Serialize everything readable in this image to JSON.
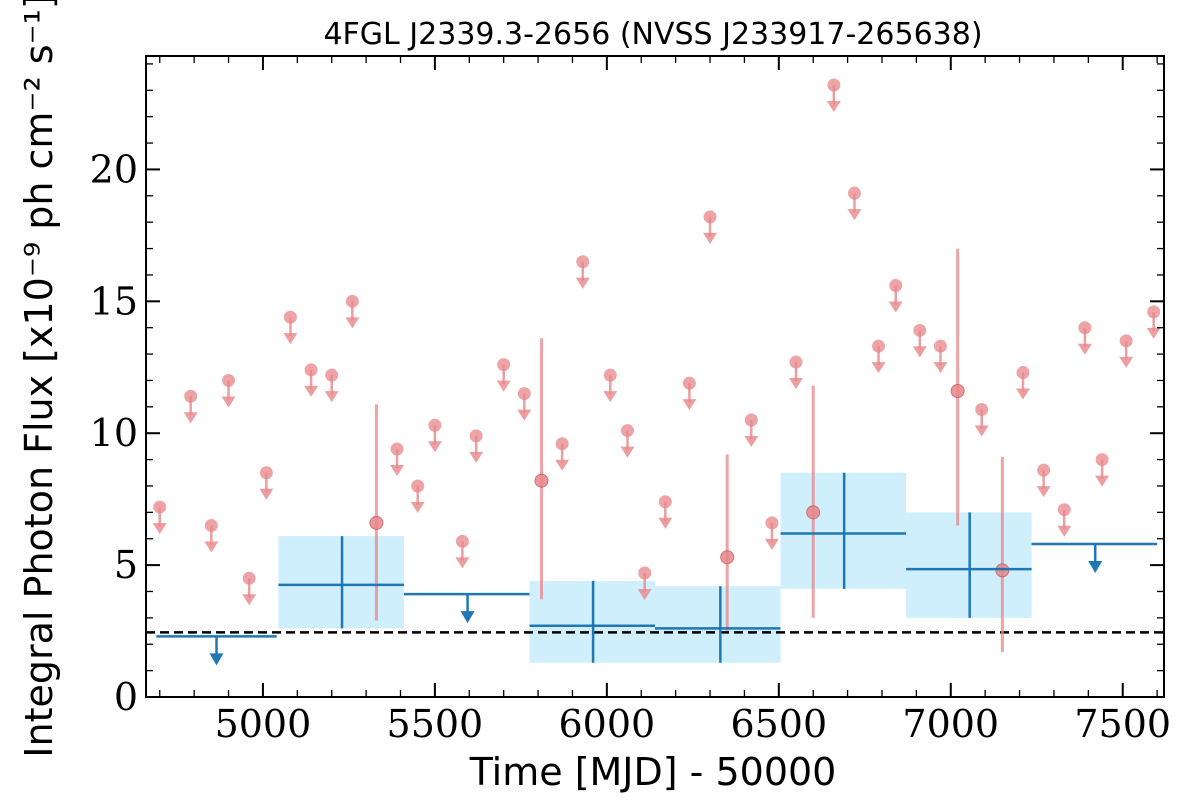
{
  "chart_data": {
    "type": "scatter",
    "title": "4FGL J2339.3-2656 (NVSS J233917-265638)",
    "xlabel": "Time [MJD] - 50000",
    "ylabel": "Integral Photon Flux [x10⁻⁹ ph cm⁻² s⁻¹]",
    "xlim": [
      4660,
      7620
    ],
    "ylim": [
      0,
      24.3
    ],
    "xticks": [
      5000,
      5500,
      6000,
      6500,
      7000,
      7500
    ],
    "yticks": [
      0,
      5,
      10,
      15,
      20
    ],
    "xtick_labels": [
      "5000",
      "5500",
      "6000",
      "6500",
      "7000",
      "7500"
    ],
    "ytick_labels": [
      "0",
      "5",
      "10",
      "15",
      "20"
    ],
    "reference_line": {
      "y": 2.45,
      "style": "dashed",
      "color": "#000000"
    },
    "colors": {
      "fine": "#e8868a",
      "coarse": "#1f77b4",
      "band": "#cdeefc"
    },
    "series": [
      {
        "kind": "fine_bins_upper_limits",
        "color": "#e8868a",
        "points": [
          {
            "x": 4700,
            "y": 7.2
          },
          {
            "x": 4790,
            "y": 11.4
          },
          {
            "x": 4850,
            "y": 6.5
          },
          {
            "x": 4900,
            "y": 12.0
          },
          {
            "x": 4960,
            "y": 4.5
          },
          {
            "x": 5010,
            "y": 8.5
          },
          {
            "x": 5080,
            "y": 14.4
          },
          {
            "x": 5140,
            "y": 12.4
          },
          {
            "x": 5200,
            "y": 12.2
          },
          {
            "x": 5260,
            "y": 15.0
          },
          {
            "x": 5390,
            "y": 9.4
          },
          {
            "x": 5450,
            "y": 8.0
          },
          {
            "x": 5500,
            "y": 10.3
          },
          {
            "x": 5580,
            "y": 5.9
          },
          {
            "x": 5620,
            "y": 9.9
          },
          {
            "x": 5700,
            "y": 12.6
          },
          {
            "x": 5760,
            "y": 11.5
          },
          {
            "x": 5870,
            "y": 9.6
          },
          {
            "x": 5930,
            "y": 16.5
          },
          {
            "x": 6010,
            "y": 12.2
          },
          {
            "x": 6060,
            "y": 10.1
          },
          {
            "x": 6110,
            "y": 4.7
          },
          {
            "x": 6170,
            "y": 7.4
          },
          {
            "x": 6240,
            "y": 11.9
          },
          {
            "x": 6300,
            "y": 18.2
          },
          {
            "x": 6420,
            "y": 10.5
          },
          {
            "x": 6480,
            "y": 6.6
          },
          {
            "x": 6550,
            "y": 12.7
          },
          {
            "x": 6660,
            "y": 23.2
          },
          {
            "x": 6720,
            "y": 19.1
          },
          {
            "x": 6790,
            "y": 13.3
          },
          {
            "x": 6840,
            "y": 15.6
          },
          {
            "x": 6910,
            "y": 13.9
          },
          {
            "x": 6970,
            "y": 13.3
          },
          {
            "x": 7090,
            "y": 10.9
          },
          {
            "x": 7210,
            "y": 12.3
          },
          {
            "x": 7270,
            "y": 8.6
          },
          {
            "x": 7330,
            "y": 7.1
          },
          {
            "x": 7390,
            "y": 14.0
          },
          {
            "x": 7440,
            "y": 9.0
          },
          {
            "x": 7510,
            "y": 13.5
          },
          {
            "x": 7590,
            "y": 14.6
          }
        ]
      },
      {
        "kind": "fine_bins_detections",
        "color": "#e8868a",
        "points": [
          {
            "x": 5330,
            "y": 6.6,
            "ylo": 2.9,
            "yhi": 11.1
          },
          {
            "x": 5810,
            "y": 8.2,
            "ylo": 3.7,
            "yhi": 13.6
          },
          {
            "x": 6350,
            "y": 5.3,
            "ylo": 2.5,
            "yhi": 9.2
          },
          {
            "x": 6600,
            "y": 7.0,
            "ylo": 3.0,
            "yhi": 11.8
          },
          {
            "x": 7020,
            "y": 11.6,
            "ylo": 6.5,
            "yhi": 17.0
          },
          {
            "x": 7150,
            "y": 4.8,
            "ylo": 1.7,
            "yhi": 9.1
          }
        ]
      },
      {
        "kind": "coarse_bins_upper_limits",
        "color": "#1f77b4",
        "points": [
          {
            "x": 4865,
            "x0": 4690,
            "x1": 5040,
            "y": 2.3
          },
          {
            "x": 5595,
            "x0": 5410,
            "x1": 5775,
            "y": 3.9
          },
          {
            "x": 7420,
            "x0": 7235,
            "x1": 7600,
            "y": 5.8
          }
        ]
      },
      {
        "kind": "coarse_bins_detections",
        "color": "#1f77b4",
        "points": [
          {
            "x": 5230,
            "x0": 5045,
            "x1": 5410,
            "y": 4.25,
            "ylo": 2.6,
            "yhi": 6.1
          },
          {
            "x": 5960,
            "x0": 5775,
            "x1": 6140,
            "y": 2.7,
            "ylo": 1.3,
            "yhi": 4.4
          },
          {
            "x": 6330,
            "x0": 6140,
            "x1": 6505,
            "y": 2.6,
            "ylo": 1.3,
            "yhi": 4.2
          },
          {
            "x": 6690,
            "x0": 6505,
            "x1": 6870,
            "y": 6.2,
            "ylo": 4.1,
            "yhi": 8.5
          },
          {
            "x": 7055,
            "x0": 6870,
            "x1": 7235,
            "y": 4.85,
            "ylo": 3.0,
            "yhi": 7.0
          }
        ]
      }
    ]
  }
}
